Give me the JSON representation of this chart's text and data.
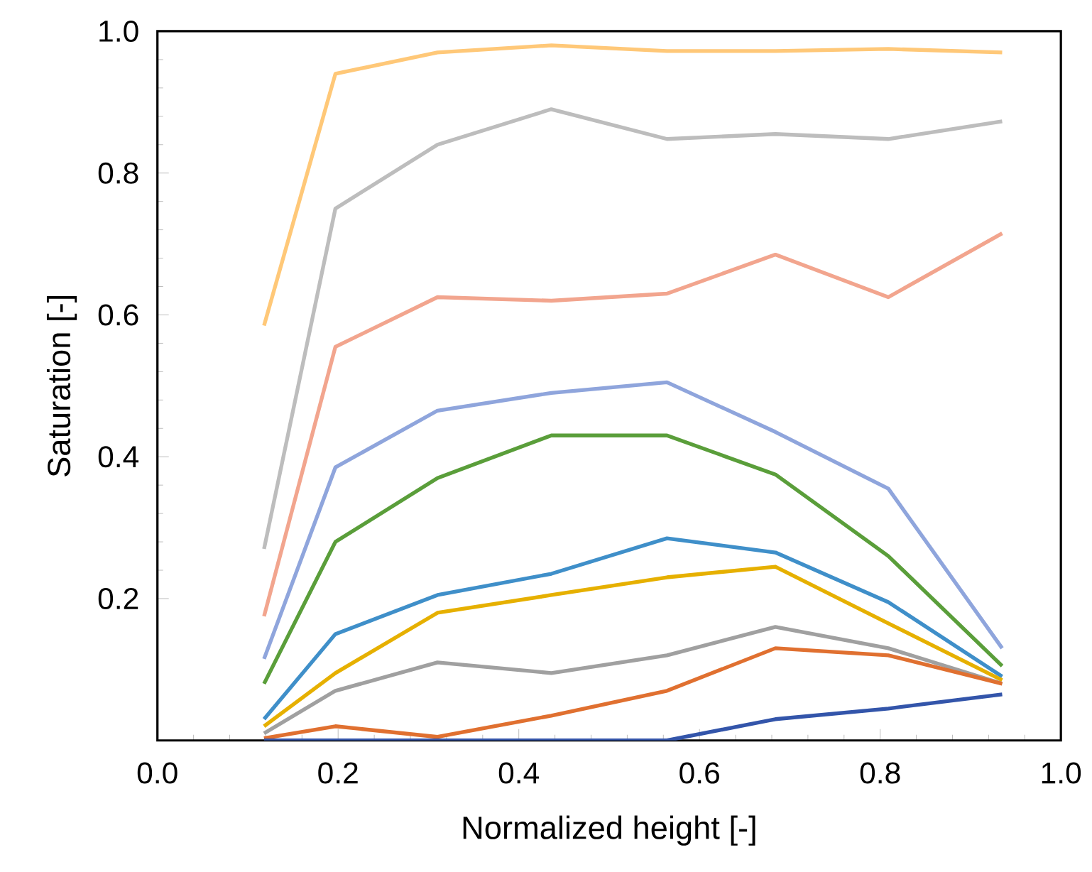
{
  "chart_data": {
    "type": "line",
    "xlabel": "Normalized height [-]",
    "ylabel": "Saturation [-]",
    "x": [
      0.118,
      0.197,
      0.31,
      0.436,
      0.564,
      0.684,
      0.809,
      0.935
    ],
    "xlim": [
      0,
      1
    ],
    "ylim": [
      0,
      1
    ],
    "xticks": [
      {
        "value": 0,
        "label": "0.0"
      },
      {
        "value": 0.2,
        "label": "0.2"
      },
      {
        "value": 0.4,
        "label": "0.4"
      },
      {
        "value": 0.6,
        "label": "0.6"
      },
      {
        "value": 0.8,
        "label": "0.8"
      },
      {
        "value": 1,
        "label": "1.0"
      }
    ],
    "yticks": [
      {
        "value": 0.2,
        "label": "0.2"
      },
      {
        "value": 0.4,
        "label": "0.4"
      },
      {
        "value": 0.6,
        "label": "0.6"
      },
      {
        "value": 0.8,
        "label": "0.8"
      },
      {
        "value": 1,
        "label": "1.0"
      }
    ],
    "grid": false,
    "marker": "none",
    "line_style": "solid",
    "series": [
      {
        "color": "#ffc878",
        "values": [
          0.585,
          0.94,
          0.97,
          0.98,
          0.972,
          0.972,
          0.975,
          0.97
        ]
      },
      {
        "color": "#bdbdbd",
        "values": [
          0.27,
          0.75,
          0.84,
          0.89,
          0.848,
          0.855,
          0.848,
          0.873
        ]
      },
      {
        "color": "#f2a58e",
        "values": [
          0.175,
          0.555,
          0.625,
          0.62,
          0.63,
          0.685,
          0.625,
          0.715
        ]
      },
      {
        "color": "#8fa5dc",
        "values": [
          0.115,
          0.385,
          0.465,
          0.49,
          0.505,
          0.435,
          0.355,
          0.13
        ]
      },
      {
        "color": "#5a9e3a",
        "values": [
          0.08,
          0.28,
          0.37,
          0.43,
          0.43,
          0.375,
          0.26,
          0.105
        ]
      },
      {
        "color": "#3f8fc9",
        "values": [
          0.03,
          0.15,
          0.205,
          0.235,
          0.285,
          0.265,
          0.195,
          0.09
        ]
      },
      {
        "color": "#e6b000",
        "values": [
          0.02,
          0.095,
          0.18,
          0.205,
          0.23,
          0.245,
          0.165,
          0.085
        ]
      },
      {
        "color": "#a0a0a0",
        "values": [
          0.01,
          0.07,
          0.11,
          0.095,
          0.12,
          0.16,
          0.13,
          0.08
        ]
      },
      {
        "color": "#e07030",
        "values": [
          0.003,
          0.02,
          0.005,
          0.035,
          0.07,
          0.13,
          0.12,
          0.08
        ]
      },
      {
        "color": "#3355aa",
        "values": [
          0.0,
          0.0,
          0.0,
          0.0,
          0.0,
          0.03,
          0.045,
          0.065
        ]
      }
    ]
  }
}
